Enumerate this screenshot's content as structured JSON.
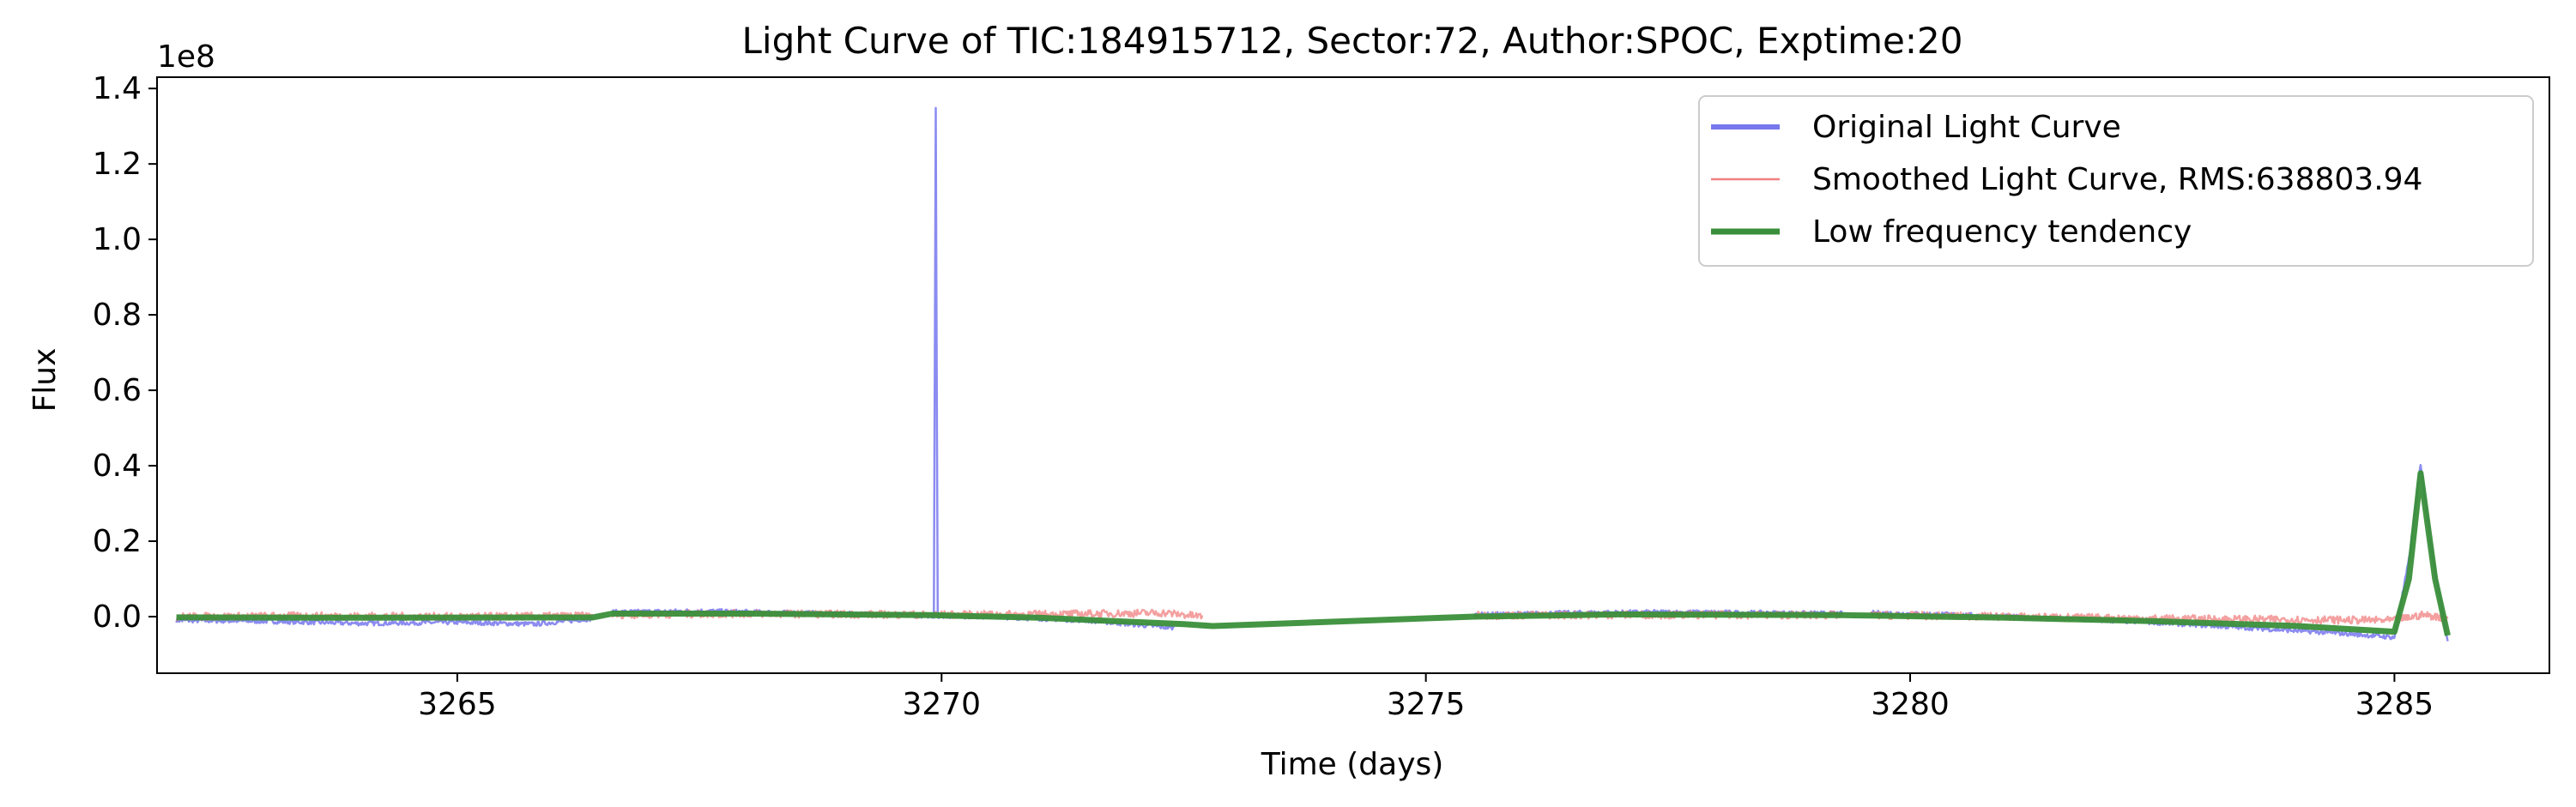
{
  "chart_data": {
    "type": "line",
    "title": "Light Curve of TIC:184915712, Sector:72, Author:SPOC, Exptime:20",
    "xlabel": "Time (days)",
    "ylabel": "Flux",
    "y_offset_label": "1e8",
    "xlim": [
      3261.9,
      3286.6
    ],
    "ylim": [
      -0.15,
      1.43
    ],
    "y_unit_multiplier": 100000000,
    "xticks": [
      3265,
      3270,
      3275,
      3280,
      3285
    ],
    "xtick_labels": [
      "3265",
      "3270",
      "3275",
      "3280",
      "3285"
    ],
    "yticks": [
      0.0,
      0.2,
      0.4,
      0.6,
      0.8,
      1.0,
      1.2,
      1.4
    ],
    "ytick_labels": [
      "0.0",
      "0.2",
      "0.4",
      "0.6",
      "0.8",
      "1.0",
      "1.2",
      "1.4"
    ],
    "grid": false,
    "legend_position": "top-right",
    "series": [
      {
        "name": "Original Light Curve",
        "color": "#7777ee",
        "style": "noisy-line",
        "segments": [
          [
            [
              3262.1,
              -0.01
            ],
            [
              3263.0,
              -0.012
            ],
            [
              3264.0,
              -0.018
            ],
            [
              3265.0,
              -0.015
            ],
            [
              3265.8,
              -0.02
            ],
            [
              3266.4,
              -0.005
            ]
          ],
          [
            [
              3266.6,
              0.012
            ],
            [
              3267.5,
              0.015
            ],
            [
              3268.5,
              0.01
            ],
            [
              3269.5,
              0.005
            ],
            [
              3269.92,
              0.002
            ],
            [
              3269.94,
              1.35
            ],
            [
              3269.96,
              0.002
            ],
            [
              3270.5,
              0.0
            ],
            [
              3271.5,
              -0.01
            ],
            [
              3272.4,
              -0.03
            ]
          ],
          [
            [
              3275.5,
              0.005
            ],
            [
              3276.5,
              0.01
            ],
            [
              3277.5,
              0.012
            ],
            [
              3278.5,
              0.01
            ],
            [
              3279.3,
              0.008
            ]
          ],
          [
            [
              3279.6,
              0.01
            ],
            [
              3280.5,
              0.005
            ],
            [
              3281.5,
              -0.005
            ],
            [
              3282.5,
              -0.015
            ],
            [
              3283.5,
              -0.03
            ],
            [
              3284.5,
              -0.045
            ],
            [
              3285.0,
              -0.055
            ],
            [
              3285.15,
              0.15
            ],
            [
              3285.27,
              0.4
            ],
            [
              3285.4,
              0.15
            ],
            [
              3285.55,
              -0.065
            ]
          ]
        ]
      },
      {
        "name": "Smoothed Light Curve, RMS:638803.94",
        "color": "#f08080",
        "style": "thin-band",
        "segments": [
          [
            [
              3262.1,
              0.0
            ],
            [
              3263.5,
              0.002
            ],
            [
              3265.0,
              0.0
            ],
            [
              3266.4,
              0.002
            ]
          ],
          [
            [
              3266.6,
              0.005
            ],
            [
              3268.0,
              0.008
            ],
            [
              3269.9,
              0.005
            ],
            [
              3271.0,
              0.006
            ],
            [
              3272.3,
              0.01
            ],
            [
              3272.7,
              0.0
            ]
          ],
          [
            [
              3275.5,
              0.003
            ],
            [
              3277.0,
              0.005
            ],
            [
              3279.3,
              0.004
            ]
          ],
          [
            [
              3279.6,
              0.004
            ],
            [
              3281.0,
              0.0
            ],
            [
              3282.5,
              -0.005
            ],
            [
              3284.0,
              -0.008
            ],
            [
              3285.0,
              -0.01
            ],
            [
              3285.3,
              0.005
            ],
            [
              3285.55,
              -0.005
            ]
          ]
        ]
      },
      {
        "name": "Low frequency tendency",
        "color": "#3a8f3a",
        "style": "thick-line",
        "segments": [
          [
            [
              3262.1,
              -0.002
            ],
            [
              3264.0,
              -0.003
            ],
            [
              3266.4,
              -0.002
            ],
            [
              3266.6,
              0.008
            ],
            [
              3268.0,
              0.008
            ],
            [
              3269.9,
              0.004
            ],
            [
              3271.0,
              -0.003
            ],
            [
              3272.5,
              -0.02
            ],
            [
              3272.8,
              -0.025
            ],
            [
              3275.5,
              0.0
            ],
            [
              3277.0,
              0.006
            ],
            [
              3279.3,
              0.004
            ],
            [
              3279.6,
              0.003
            ],
            [
              3281.0,
              -0.003
            ],
            [
              3282.5,
              -0.012
            ],
            [
              3284.0,
              -0.025
            ],
            [
              3285.0,
              -0.04
            ],
            [
              3285.15,
              0.1
            ],
            [
              3285.27,
              0.38
            ],
            [
              3285.42,
              0.1
            ],
            [
              3285.55,
              -0.05
            ]
          ]
        ]
      }
    ]
  }
}
